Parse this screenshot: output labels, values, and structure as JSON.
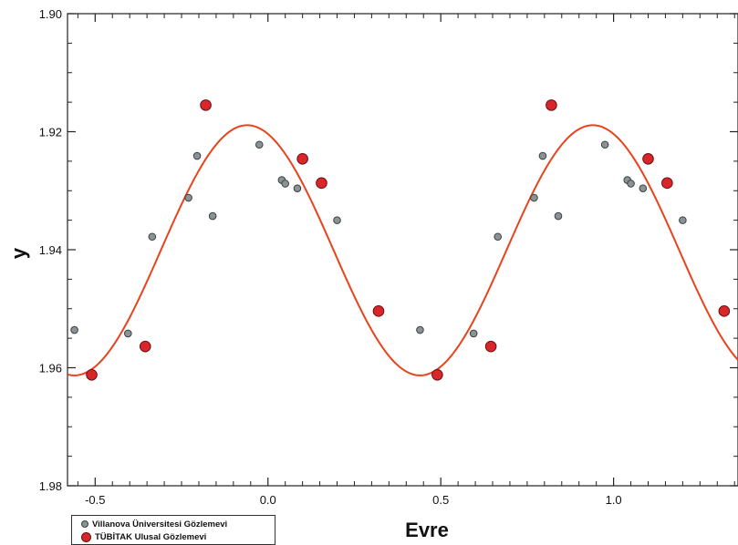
{
  "chart_data": {
    "type": "scatter",
    "xlabel": "Evre",
    "ylabel": "y",
    "xlim": [
      -0.58,
      1.36
    ],
    "ylim": [
      1.9,
      1.98
    ],
    "y_inverted": true,
    "x_ticks": [
      -0.5,
      0.0,
      0.5,
      1.0
    ],
    "x_tick_labels": [
      "-0.5",
      "0.0",
      "0.5",
      "1.0"
    ],
    "y_ticks": [
      1.9,
      1.92,
      1.94,
      1.96,
      1.98
    ],
    "y_tick_labels": [
      "1.90",
      "1.92",
      "1.94",
      "1.96",
      "1.98"
    ],
    "grid": false,
    "legend_position": "bottom-left",
    "series": [
      {
        "name": "Villanova Üniversitesi Gözlemevi",
        "marker": "small-circle",
        "color": "#8a9294",
        "points": [
          {
            "x": -0.56,
            "y": 1.9536
          },
          {
            "x": -0.405,
            "y": 1.9542
          },
          {
            "x": -0.335,
            "y": 1.9378
          },
          {
            "x": -0.23,
            "y": 1.9312
          },
          {
            "x": -0.205,
            "y": 1.9241
          },
          {
            "x": -0.16,
            "y": 1.9343
          },
          {
            "x": -0.025,
            "y": 1.9222
          },
          {
            "x": 0.04,
            "y": 1.9282
          },
          {
            "x": 0.05,
            "y": 1.9288
          },
          {
            "x": 0.085,
            "y": 1.9296
          },
          {
            "x": 0.2,
            "y": 1.935
          },
          {
            "x": 0.44,
            "y": 1.9536
          },
          {
            "x": 0.595,
            "y": 1.9542
          },
          {
            "x": 0.665,
            "y": 1.9378
          },
          {
            "x": 0.77,
            "y": 1.9312
          },
          {
            "x": 0.795,
            "y": 1.9241
          },
          {
            "x": 0.84,
            "y": 1.9343
          },
          {
            "x": 0.975,
            "y": 1.9222
          },
          {
            "x": 1.04,
            "y": 1.9282
          },
          {
            "x": 1.05,
            "y": 1.9288
          },
          {
            "x": 1.085,
            "y": 1.9296
          },
          {
            "x": 1.2,
            "y": 1.935
          }
        ]
      },
      {
        "name": "TÜBİTAK Ulusal Gözlemevi",
        "marker": "large-circle",
        "color": "#d9262a",
        "points": [
          {
            "x": -0.51,
            "y": 1.9612
          },
          {
            "x": -0.355,
            "y": 1.9564
          },
          {
            "x": -0.18,
            "y": 1.9155
          },
          {
            "x": 0.1,
            "y": 1.9246
          },
          {
            "x": 0.155,
            "y": 1.9287
          },
          {
            "x": 0.32,
            "y": 1.9504
          },
          {
            "x": 0.49,
            "y": 1.9612
          },
          {
            "x": 0.645,
            "y": 1.9564
          },
          {
            "x": 0.82,
            "y": 1.9155
          },
          {
            "x": 1.1,
            "y": 1.9246
          },
          {
            "x": 1.155,
            "y": 1.9287
          },
          {
            "x": 1.32,
            "y": 1.9504
          }
        ]
      },
      {
        "name": "",
        "type": "line",
        "color": "#e8431c",
        "model": {
          "mean": 1.9401,
          "amplitude": 0.0212,
          "phase_of_minimum": -0.06,
          "period": 1.0
        }
      }
    ]
  }
}
